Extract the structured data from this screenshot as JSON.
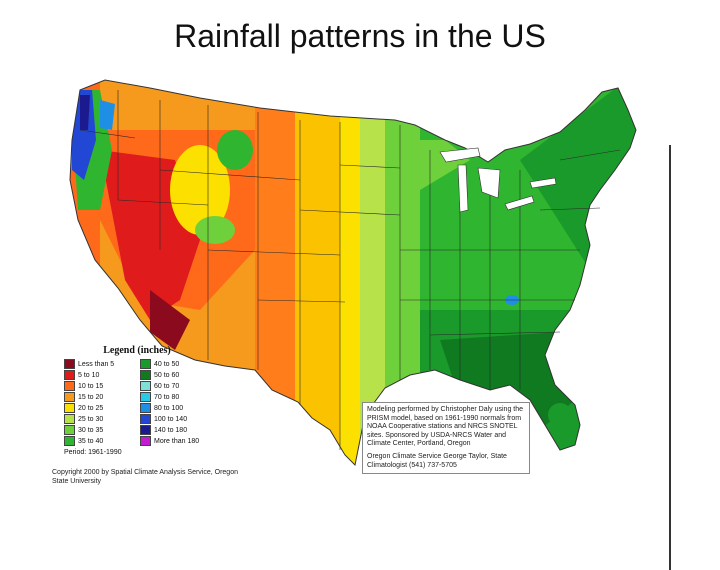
{
  "title": "Rainfall patterns in the US",
  "legend": {
    "title": "Legend (inches)",
    "items": [
      {
        "label": "Less than 5",
        "color": "#8b0a1e"
      },
      {
        "label": "5 to 10",
        "color": "#e01b1b"
      },
      {
        "label": "10 to 15",
        "color": "#ff6a1a"
      },
      {
        "label": "15 to 20",
        "color": "#f59a1c"
      },
      {
        "label": "20 to 25",
        "color": "#fbe000"
      },
      {
        "label": "25 to 30",
        "color": "#b7e24a"
      },
      {
        "label": "30 to 35",
        "color": "#6ed13b"
      },
      {
        "label": "35 to 40",
        "color": "#2fb52f"
      },
      {
        "label": "40 to 50",
        "color": "#1a9a2a"
      },
      {
        "label": "50 to 60",
        "color": "#0f7a1f"
      },
      {
        "label": "60 to 70",
        "color": "#7fe0d8"
      },
      {
        "label": "70 to 80",
        "color": "#29c9e8"
      },
      {
        "label": "80 to 100",
        "color": "#1f8fe6"
      },
      {
        "label": "100 to 140",
        "color": "#2247d4"
      },
      {
        "label": "140 to 180",
        "color": "#1b1b8f"
      },
      {
        "label": "More than 180",
        "color": "#c21bd1"
      }
    ],
    "period": "Period: 1961-1990"
  },
  "copyright": "Copyright 2000 by Spatial Climate Analysis Service, Oregon State University",
  "note": {
    "paragraph1": "Modeling performed by Christopher Daly using the PRISM model, based on 1961-1990 normals from NOAA Cooperative stations and NRCS SNOTEL sites. Sponsored by USDA-NRCS Water and Climate Center, Portland, Oregon",
    "paragraph2": "Oregon Climate Service George Taylor, State Climatologist (541) 737-5705"
  }
}
